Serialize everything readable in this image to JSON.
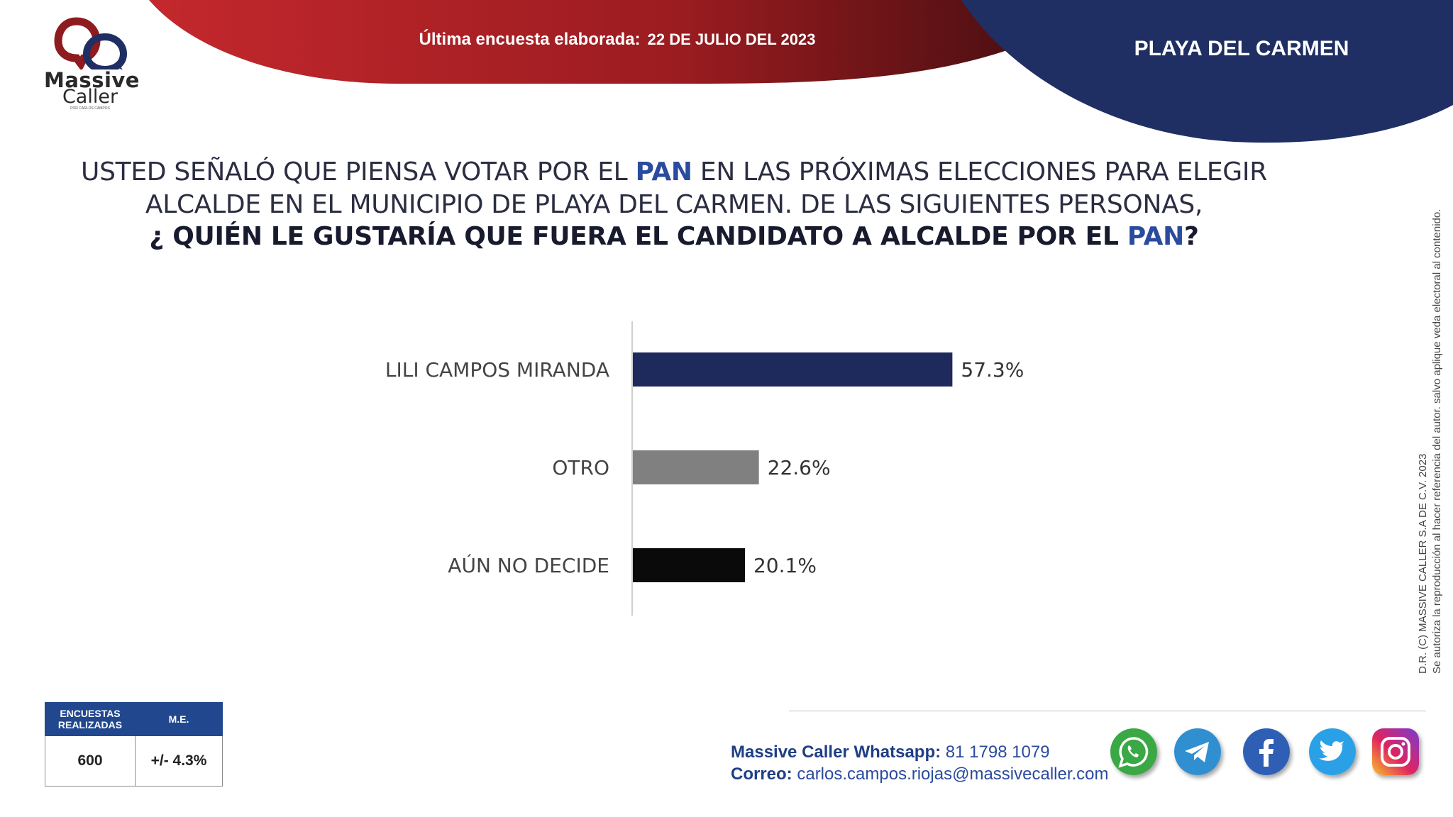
{
  "brand": {
    "name_line1": "Massive",
    "name_line2": "Caller",
    "tagline": "POR CARLOS CAMPOS"
  },
  "header": {
    "survey_label": "Última encuesta elaborada:",
    "survey_date": "22 DE JULIO DEL 2023",
    "location": "PLAYA DEL CARMEN"
  },
  "question": {
    "line1_pre": "USTED SEÑALÓ QUE PIENSA VOTAR POR EL ",
    "line1_party": "PAN",
    "line1_post": " EN LAS PRÓXIMAS ELECCIONES PARA ELEGIR",
    "line2": "ALCALDE EN EL MUNICIPIO DE PLAYA DEL CARMEN. DE LAS SIGUIENTES PERSONAS,",
    "line3_pre": "¿ QUIÉN LE GUSTARÍA QUE FUERA EL CANDIDATO A ALCALDE POR EL ",
    "line3_party": "PAN",
    "line3_post": "?"
  },
  "chart_data": {
    "type": "bar",
    "orientation": "horizontal",
    "categories": [
      "LILI CAMPOS MIRANDA",
      "OTRO",
      "AÚN NO DECIDE"
    ],
    "values": [
      57.3,
      22.6,
      20.1
    ],
    "value_labels": [
      "57.3%",
      "22.6%",
      "20.1%"
    ],
    "colors": [
      "#1f2a5c",
      "#808080",
      "#0a0a0a"
    ],
    "xlim": [
      0,
      100
    ],
    "grid": false,
    "legend": "none"
  },
  "stats": {
    "surveys_header": "ENCUESTAS REALIZADAS",
    "surveys_value": "600",
    "moe_header": "M.E.",
    "moe_value": "+/- 4.3%"
  },
  "copyright": {
    "line1": "D.R. (C) MASSIVE CALLER S.A DE C.V. 2023",
    "line2": "Se autoriza la reproducción al hacer referencia del autor. salvo aplique veda electoral al contenido."
  },
  "contact": {
    "whatsapp_label": "Massive Caller Whatsapp:",
    "whatsapp_value": "81 1798 1079",
    "email_label": "Correo:",
    "email_value": "carlos.campos.riojas@massivecaller.com"
  },
  "social_icons": [
    "whatsapp-icon",
    "telegram-icon",
    "facebook-icon",
    "twitter-icon",
    "instagram-icon"
  ],
  "colors": {
    "red": "#b4232a",
    "navy": "#1f2f63",
    "pan_blue": "#2a4b9e"
  }
}
